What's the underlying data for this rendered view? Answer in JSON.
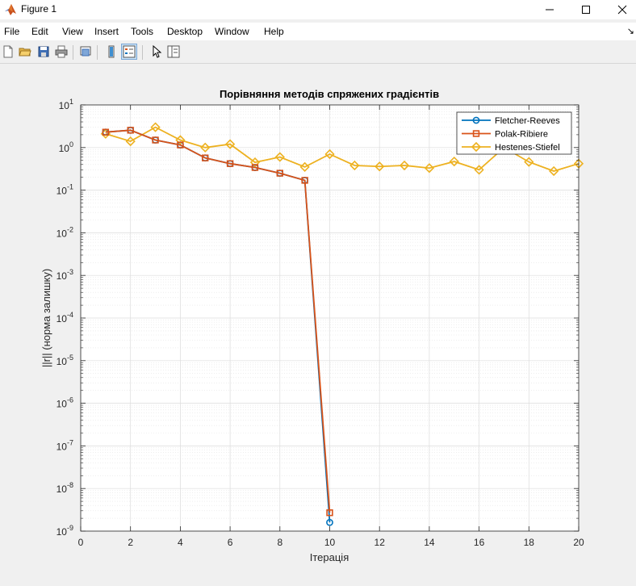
{
  "window": {
    "title": "Figure 1",
    "minimize_icon": "minimize-icon",
    "maximize_icon": "maximize-icon",
    "close_icon": "close-icon"
  },
  "menu": {
    "items": [
      "File",
      "Edit",
      "View",
      "Insert",
      "Tools",
      "Desktop",
      "Window",
      "Help"
    ]
  },
  "toolbar": {
    "buttons": [
      "new-figure-icon",
      "open-file-icon",
      "save-icon",
      "print-icon",
      "print-preview-icon",
      "colorbar-icon",
      "legend-icon",
      "pointer-icon",
      "property-inspector-icon"
    ]
  },
  "colors": {
    "fletcher": "#0072BD",
    "polak": "#D95319",
    "hestenes": "#EDB120"
  },
  "chart_data": {
    "type": "line",
    "title": "Порівняння методів спряжених градієнтів",
    "xlabel": "Ітерація",
    "ylabel": "||r|| (норма залишку)",
    "xlim": [
      0,
      20
    ],
    "ylim": [
      1e-09,
      10
    ],
    "yscale": "log",
    "grid": true,
    "minor_grid": true,
    "legend_position": "top-right",
    "xticks": [
      0,
      2,
      4,
      6,
      8,
      10,
      12,
      14,
      16,
      18,
      20
    ],
    "yticks": [
      {
        "base": "10",
        "exp": "-9",
        "value": 1e-09
      },
      {
        "base": "10",
        "exp": "-8",
        "value": 1e-08
      },
      {
        "base": "10",
        "exp": "-7",
        "value": 1e-07
      },
      {
        "base": "10",
        "exp": "-6",
        "value": 1e-06
      },
      {
        "base": "10",
        "exp": "-5",
        "value": 1e-05
      },
      {
        "base": "10",
        "exp": "-4",
        "value": 0.0001
      },
      {
        "base": "10",
        "exp": "-3",
        "value": 0.001
      },
      {
        "base": "10",
        "exp": "-2",
        "value": 0.01
      },
      {
        "base": "10",
        "exp": "-1",
        "value": 0.1
      },
      {
        "base": "10",
        "exp": "0",
        "value": 1
      },
      {
        "base": "10",
        "exp": "1",
        "value": 10
      }
    ],
    "series": [
      {
        "name": "Fletcher-Reeves",
        "color": "#0072BD",
        "marker": "circle",
        "x": [
          1,
          2,
          3,
          4,
          5,
          6,
          7,
          8,
          9,
          10
        ],
        "y": [
          2.3,
          2.55,
          1.5,
          1.15,
          0.57,
          0.42,
          0.34,
          0.25,
          0.17,
          1.6e-09
        ]
      },
      {
        "name": "Polak-Ribiere",
        "color": "#D95319",
        "marker": "square",
        "x": [
          1,
          2,
          3,
          4,
          5,
          6,
          7,
          8,
          9,
          10
        ],
        "y": [
          2.3,
          2.55,
          1.5,
          1.15,
          0.57,
          0.42,
          0.34,
          0.25,
          0.17,
          2.7e-09
        ]
      },
      {
        "name": "Hestenes-Stiefel",
        "color": "#EDB120",
        "marker": "diamond",
        "x": [
          1,
          2,
          3,
          4,
          5,
          6,
          7,
          8,
          9,
          10,
          11,
          12,
          13,
          14,
          15,
          16,
          17,
          18,
          19,
          20
        ],
        "y": [
          2.1,
          1.4,
          3.0,
          1.5,
          1.0,
          1.2,
          0.45,
          0.6,
          0.35,
          0.7,
          0.38,
          0.36,
          0.38,
          0.33,
          0.47,
          0.3,
          1.0,
          0.46,
          0.28,
          0.42
        ]
      }
    ]
  }
}
